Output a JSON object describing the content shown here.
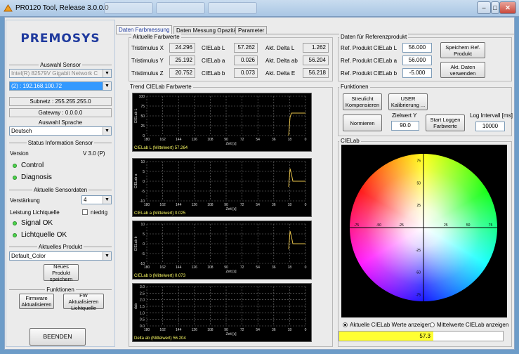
{
  "window": {
    "title": "PR0120 Tool, Release 3.0.0.0"
  },
  "sidebar": {
    "logo": "PREMOSYS",
    "sensor_title": "Auswahl Sensor",
    "network_adapter": "Intel(R) 82579V Gigabit Network C",
    "ip_address": "(2) : 192.168.100.72",
    "subnetz": "Subnetz : 255.255.255.0",
    "gateway": "Gateway : 0.0.0.0",
    "language_title": "Auswahl Sprache",
    "language": "Deutsch",
    "status_title": "Status Information Sensor",
    "version_label": "Version",
    "version_value": "V 3.0 (P)",
    "control_label": "Control",
    "diagnosis_label": "Diagnosis",
    "sensordata_title": "Aktuelle Sensordaten",
    "gain_label": "Verstärkung",
    "gain_value": "4",
    "light_power_label": "Leistung Lichtquelle",
    "light_power_option": "niedrig",
    "signal_ok": "Signal OK",
    "light_ok": "Lichtquelle OK",
    "product_title": "Aktuelles Produkt",
    "product_value": "Default_Color",
    "new_product_btn": "Neues Produkt speichern",
    "functions_title": "Funktionen",
    "firmware_btn": "Firmware Aktualisieren",
    "fw_light_btn": "FW Aktualisieren Lichtquelle",
    "exit_btn": "BEENDEN"
  },
  "tabs": [
    {
      "label": "Daten Farbmessung"
    },
    {
      "label": "Daten Messung Opazität"
    },
    {
      "label": "Parameter"
    }
  ],
  "current_values": {
    "title": "Aktuelle Farbwerte",
    "tristimulus_x_label": "Tristimulus X",
    "tristimulus_x": "24.296",
    "tristimulus_y_label": "Tristimulus Y",
    "tristimulus_y": "25.192",
    "tristimulus_z_label": "Tristimulus Z",
    "tristimulus_z": "20.752",
    "ciel_label": "CIELab L",
    "ciel": "57.262",
    "ciea_label": "CIELab a",
    "ciea": "0.026",
    "cieb_label": "CIELab b",
    "cieb": "0.073",
    "delta_l_label": "Akt. Delta L",
    "delta_l": "1.262",
    "delta_ab_label": "Akt. Delta ab",
    "delta_ab": "56.204",
    "delta_e_label": "Akt. Delta E",
    "delta_e": "56.218"
  },
  "reference": {
    "title": "Daten für Referenzprodukt",
    "ref_l_label": "Ref. Produkt CIELab L",
    "ref_l": "56.000",
    "ref_a_label": "Ref. Produkt CIELab a",
    "ref_a": "56.000",
    "ref_b_label": "Ref. Produkt CIELab b",
    "ref_b": "-5.000",
    "save_btn": "Speichern Ref. Produkt",
    "use_btn": "Akt. Daten verwenden"
  },
  "functions": {
    "title": "Funktionen",
    "stray_btn": "Streulicht Kompensieren",
    "user_btn": "USER Kalibrierung ...",
    "normalize_btn": "Normieren",
    "target_label": "Zielwert Y",
    "target_value": "90.0",
    "start_log_btn": "Start Loggen Farbwerte",
    "log_interval_label": "Log Intervall [ms]",
    "log_interval_value": "10000"
  },
  "trend": {
    "title": "Trend CIELab Farbwerte",
    "x_ticks": [
      "180",
      "162",
      "144",
      "126",
      "108",
      "90",
      "72",
      "54",
      "36",
      "18",
      "0"
    ],
    "x_label": "Zeit [s]",
    "plots": [
      {
        "ylabel": "CIELab L",
        "yticks": [
          "100",
          "75",
          "50",
          "25",
          "0"
        ],
        "caption": "CIELab L (Mittelwert) 57.264"
      },
      {
        "ylabel": "CIELab a",
        "yticks": [
          "10",
          "5",
          "0",
          "-5",
          "-10"
        ],
        "caption": "CIELab a (Mittelwert) 0.025"
      },
      {
        "ylabel": "CIELab b",
        "yticks": [
          "10",
          "5",
          "0",
          "-5",
          "-10"
        ],
        "caption": "CIELab b (Mittelwert) 0.073"
      },
      {
        "ylabel": "dab",
        "yticks": [
          "3.0",
          "2.5",
          "2.0",
          "1.5",
          "1.0",
          "0.5",
          "0.0"
        ],
        "caption": "Delta ab (Mittelwert) 56.204"
      }
    ]
  },
  "cielab": {
    "title": "CIELab",
    "axis_ticks_pos": [
      "25",
      "50",
      "75"
    ],
    "axis_ticks_neg": [
      "-25",
      "-50",
      "-75"
    ],
    "radio_current": "Aktuelle CIELab Werte anzeigen",
    "radio_mean": "Mittelwerte CIELab anzeigen",
    "bar_value": "57.3"
  }
}
